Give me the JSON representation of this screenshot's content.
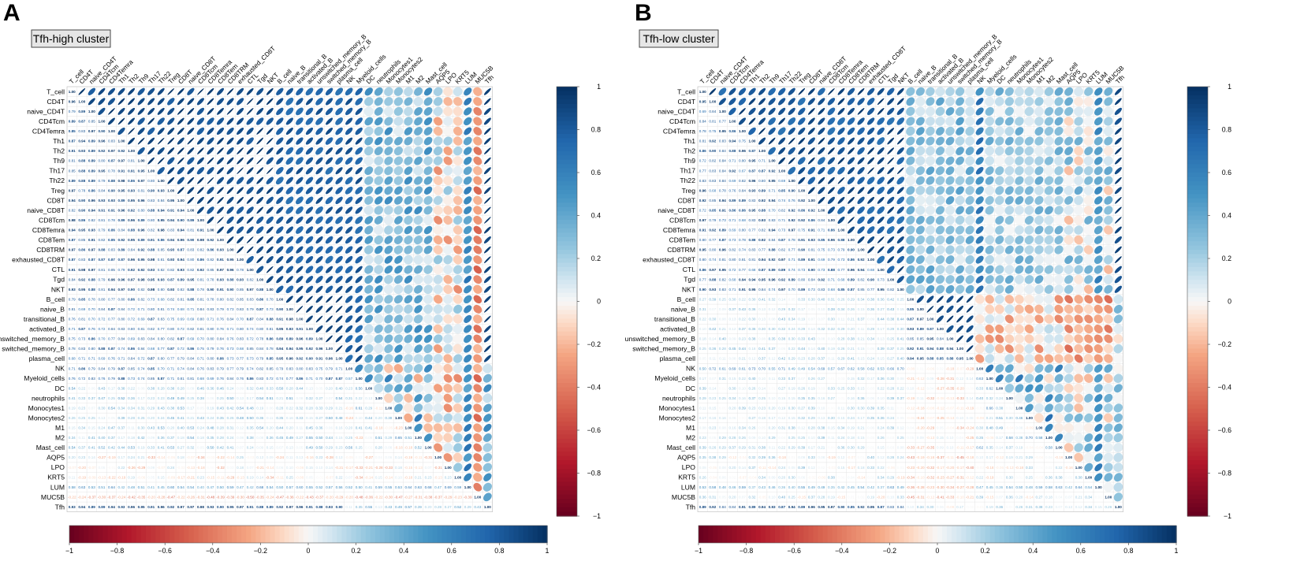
{
  "panels": [
    {
      "letter": "A",
      "title": "Tfh-high cluster",
      "pattern": "high"
    },
    {
      "letter": "B",
      "title": "Tfh-low cluster",
      "pattern": "low"
    }
  ],
  "colorbar": {
    "ticks": [
      "1",
      "0.8",
      "0.6",
      "0.4",
      "0.2",
      "0",
      "−0.2",
      "−0.4",
      "−0.6",
      "−0.8",
      "−1"
    ],
    "h_ticks": [
      "−1",
      "−0.8",
      "−0.6",
      "−0.4",
      "−0.2",
      "0",
      "0.2",
      "0.4",
      "0.6",
      "0.8",
      "1"
    ],
    "neg_color": "#67001f",
    "zero_color": "#f7f7f7",
    "pos_color": "#053061"
  },
  "chart_data": {
    "type": "heatmap",
    "style": "mixed correlation plot (upper: ellipses, lower: coefficients)",
    "range": [
      -1,
      1
    ],
    "variables": [
      "T_cell",
      "CD4T",
      "naive_CD4T",
      "CD4Tcm",
      "CD4Temra",
      "Th1",
      "Th2",
      "Th9",
      "Th17",
      "Th22",
      "Treg",
      "CD8T",
      "naive_CD8T",
      "CD8Tcm",
      "CD8Temra",
      "CD8Tem",
      "CD8TRM",
      "exhausted_CD8T",
      "CTL",
      "Tgd",
      "NKT",
      "B_cell",
      "naive_B",
      "transitional_B",
      "activated_B",
      "unswitched_memory_B",
      "switched_memory_B",
      "plasma_cell",
      "NK",
      "Myeloid_cells",
      "DC",
      "neutrophils",
      "Monocytes1",
      "Monocytes2",
      "M1",
      "M2",
      "Mast_cell",
      "AQP5",
      "LPO",
      "KRT5",
      "LUM",
      "MUC5B",
      "Tfh"
    ],
    "series": [
      {
        "name": "Tfh-high cluster",
        "diagonal": 1.0,
        "sample_values": [
          {
            "row": "CD4T",
            "col": "T_cell",
            "value": 1.0
          },
          {
            "row": "naive_CD4T",
            "col": "T_cell",
            "value": 0.99
          },
          {
            "row": "Th1",
            "col": "T_cell",
            "value": 0.98
          },
          {
            "row": "Treg",
            "col": "T_cell",
            "value": 0.98
          },
          {
            "row": "NKT",
            "col": "T_cell",
            "value": 0.94
          },
          {
            "row": "B_cell",
            "col": "T_cell",
            "value": 0.84
          },
          {
            "row": "NK",
            "col": "T_cell",
            "value": 0.75
          },
          {
            "row": "DC",
            "col": "T_cell",
            "value": 0.46
          },
          {
            "row": "M2",
            "col": "T_cell",
            "value": 0.55
          },
          {
            "row": "LUM",
            "col": "T_cell",
            "value": 0.58
          },
          {
            "row": "MUC5B",
            "col": "T_cell",
            "value": -0.41
          },
          {
            "row": "Tfh",
            "col": "T_cell",
            "value": 0.97
          }
        ]
      },
      {
        "name": "Tfh-low cluster",
        "diagonal": 1.0,
        "sample_values": [
          {
            "row": "CD4T",
            "col": "T_cell",
            "value": 0.97
          },
          {
            "row": "naive_CD4T",
            "col": "T_cell",
            "value": 0.89
          },
          {
            "row": "CD4Tcm",
            "col": "T_cell",
            "value": 0.73
          },
          {
            "row": "Th1",
            "col": "T_cell",
            "value": 0.93
          },
          {
            "row": "Treg",
            "col": "T_cell",
            "value": 0.95
          },
          {
            "row": "NKT",
            "col": "T_cell",
            "value": 0.89
          },
          {
            "row": "NK",
            "col": "T_cell",
            "value": 0.55
          },
          {
            "row": "Myeloid_cells",
            "col": "DC",
            "value": 0.62
          },
          {
            "row": "LUM",
            "col": "T_cell",
            "value": 0.56
          },
          {
            "row": "Tfh",
            "col": "T_cell",
            "value": 0.94
          }
        ]
      }
    ]
  }
}
